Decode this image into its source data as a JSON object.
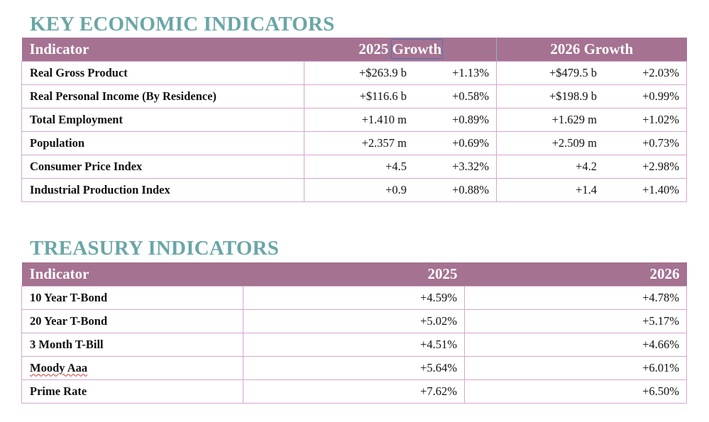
{
  "key_section": {
    "title": "KEY ECONOMIC INDICATORS",
    "header": {
      "indicator": "Indicator",
      "col2025_year": "2025",
      "col2025_word": "Growth",
      "col2026": "2026 Growth"
    },
    "rows": [
      {
        "label": "Real Gross Product",
        "v2025": "+$263.9 b",
        "g2025": "+1.13%",
        "v2026": "+$479.5 b",
        "g2026": "+2.03%"
      },
      {
        "label": "Real Personal Income (By Residence)",
        "v2025": "+$116.6 b",
        "g2025": "+0.58%",
        "v2026": "+$198.9 b",
        "g2026": "+0.99%"
      },
      {
        "label": "Total Employment",
        "v2025": "+1.410 m",
        "g2025": "+0.89%",
        "v2026": "+1.629 m",
        "g2026": "+1.02%"
      },
      {
        "label": "Population",
        "v2025": "+2.357 m",
        "g2025": "+0.69%",
        "v2026": "+2.509 m",
        "g2026": "+0.73%"
      },
      {
        "label": "Consumer Price Index",
        "v2025": "+4.5",
        "g2025": "+3.32%",
        "v2026": "+4.2",
        "g2026": "+2.98%"
      },
      {
        "label": "Industrial Production Index",
        "v2025": "+0.9",
        "g2025": "+0.88%",
        "v2026": "+1.4",
        "g2026": "+1.40%"
      }
    ]
  },
  "treasury_section": {
    "title": "TREASURY INDICATORS",
    "header": {
      "indicator": "Indicator",
      "col2025": "2025",
      "col2026": "2026"
    },
    "rows": [
      {
        "label": "10 Year T-Bond",
        "v2025": "+4.59%",
        "v2026": "+4.78%"
      },
      {
        "label": "20 Year T-Bond",
        "v2025": "+5.02%",
        "v2026": "+5.17%"
      },
      {
        "label": "3 Month T-Bill",
        "v2025": "+4.51%",
        "v2026": "+4.66%"
      },
      {
        "label": "Moody Aaa",
        "v2025": "+5.64%",
        "v2026": "+6.01%"
      },
      {
        "label": "Prime Rate",
        "v2025": "+7.62%",
        "v2026": "+6.50%"
      }
    ]
  },
  "colors": {
    "title": "#6aa6a6",
    "header_bg": "#a57291",
    "border": "#d3a6d3"
  }
}
